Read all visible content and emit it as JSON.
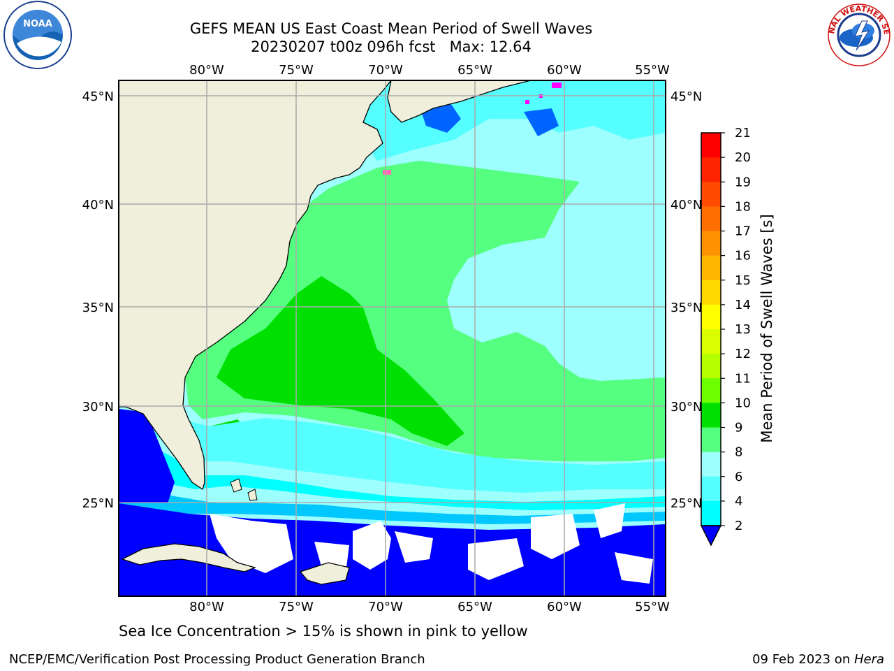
{
  "header": {
    "title_line1": "GEFS MEAN US East Coast Mean Period of Swell Waves",
    "title_line2": "20230207 t00z 096h fcst   Max: 12.64"
  },
  "logos": {
    "left": {
      "name": "noaa-logo",
      "text": "NOAA",
      "ring_text": "NATIONAL OCEANIC AND ATMOSPHERIC ADMINISTRATION · U.S. DEPARTMENT OF COMMERCE"
    },
    "right": {
      "name": "nws-logo",
      "ring_text": "NATIONAL WEATHER SERVICE"
    }
  },
  "map": {
    "lon_ticks": [
      "80°W",
      "75°W",
      "70°W",
      "65°W",
      "60°W",
      "55°W"
    ],
    "lat_ticks": [
      "45°N",
      "40°N",
      "35°N",
      "30°N",
      "25°N"
    ]
  },
  "colorbar": {
    "label": "Mean Period of Swell Waves [s]",
    "ticks": [
      "21",
      "20",
      "19",
      "18",
      "17",
      "16",
      "15",
      "14",
      "13",
      "12",
      "11",
      "10",
      "9",
      "8",
      "6",
      "4",
      "2"
    ],
    "colors": [
      "#ff0000",
      "#ff2400",
      "#ff4a00",
      "#ff6e00",
      "#ff9200",
      "#ffb600",
      "#ffda00",
      "#ffff00",
      "#daff00",
      "#b6ff00",
      "#6eff00",
      "#00e000",
      "#55ff7f",
      "#9effff",
      "#55ffff",
      "#00ffff",
      "#00c8ff",
      "#0064ff"
    ],
    "under_color": "#0000ff"
  },
  "caption": "Sea Ice Concentration > 15% is shown in pink to yellow",
  "footer": {
    "left": "NCEP/EMC/Verification Post Processing Product Generation Branch",
    "right_date": "09 Feb 2023 on ",
    "right_host": "Hera"
  }
}
